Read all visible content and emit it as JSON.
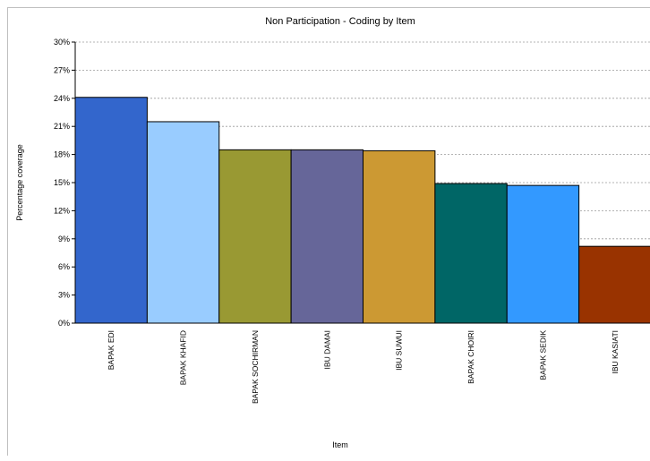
{
  "chart_data": {
    "type": "bar",
    "title": "Non Participation - Coding by Item",
    "xlabel": "Item",
    "ylabel": "Percentage coverage",
    "ylim": [
      0,
      30
    ],
    "yticks": [
      "0%",
      "3%",
      "6%",
      "9%",
      "12%",
      "15%",
      "18%",
      "21%",
      "24%",
      "27%",
      "30%"
    ],
    "grid": true,
    "categories": [
      "BAPAK EDI",
      "BAPAK KHAFID",
      "BAPAK SOCHIRMAN",
      "IBU DAMAI",
      "IBU SUWUI",
      "BAPAK CHOIRI",
      "BAPAK SEDIK",
      "IBU KASIATI"
    ],
    "values": [
      24.1,
      21.5,
      18.5,
      18.5,
      18.4,
      14.9,
      14.7,
      8.2
    ],
    "colors": [
      "#3366cc",
      "#99ccff",
      "#999933",
      "#666699",
      "#cc9933",
      "#006666",
      "#3399ff",
      "#993300"
    ]
  }
}
